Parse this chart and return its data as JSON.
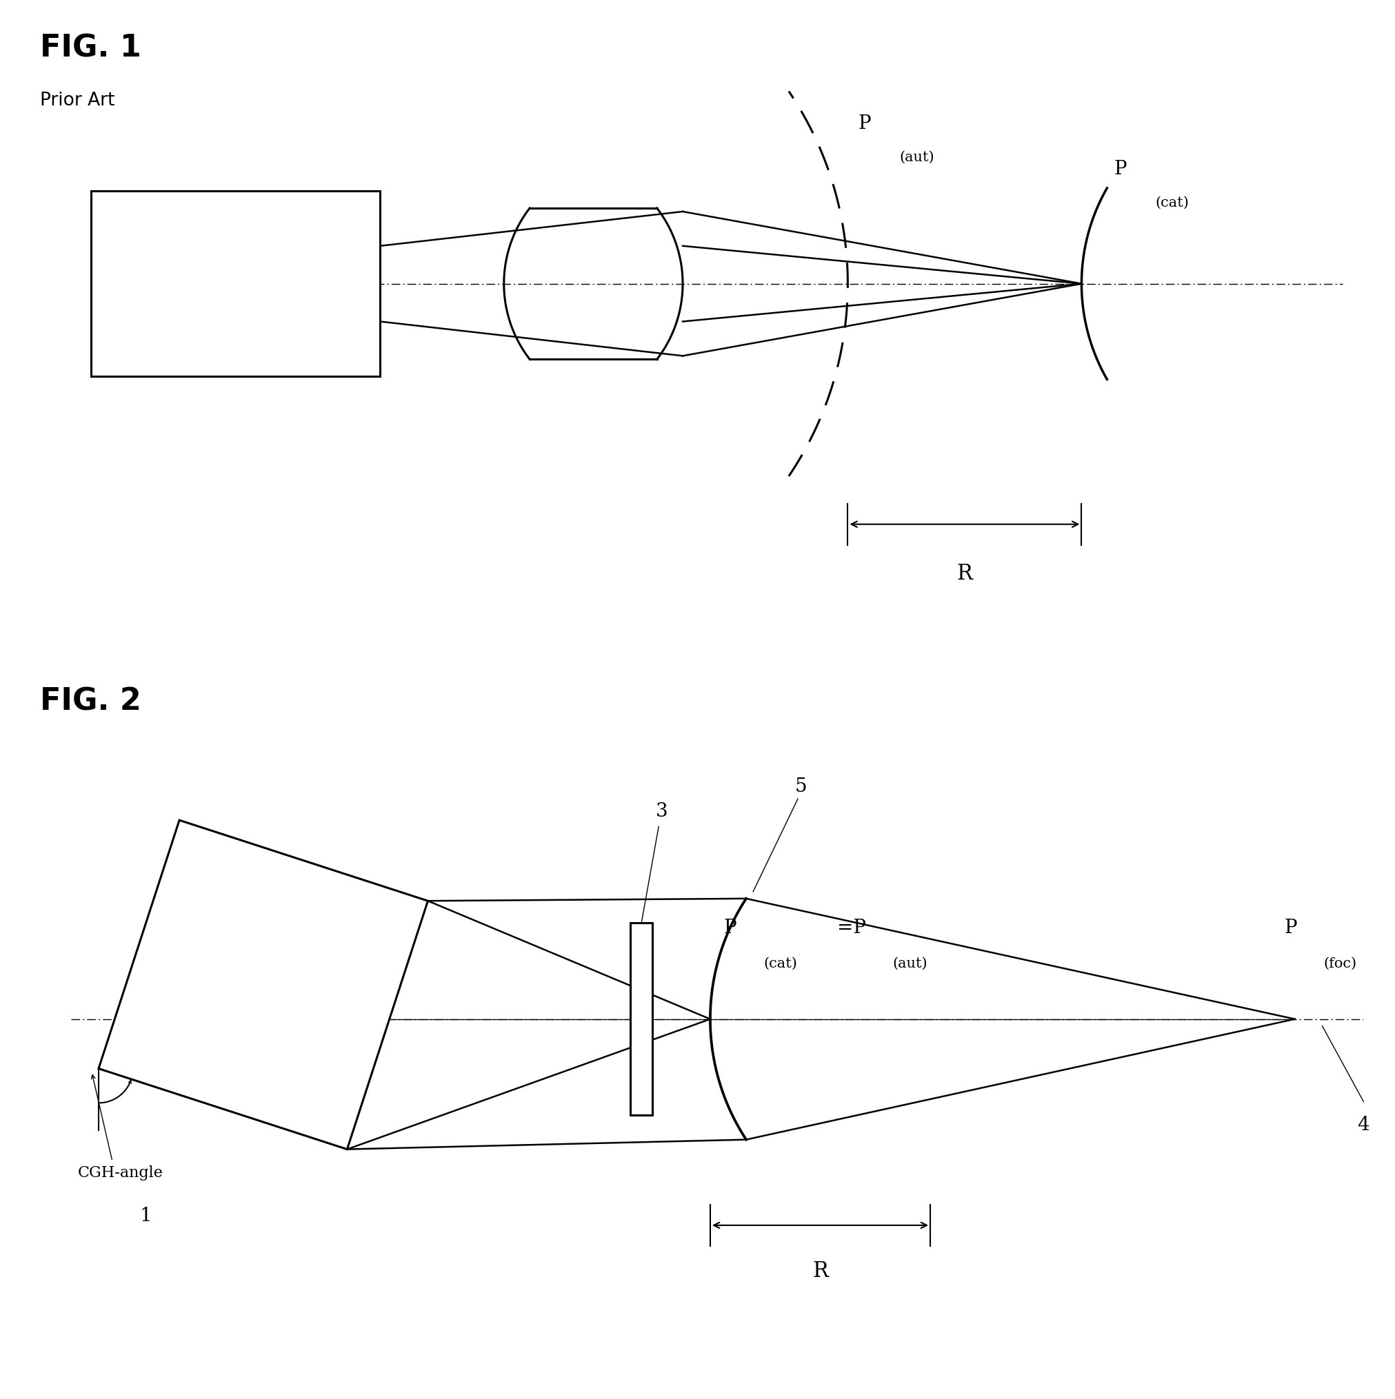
{
  "fig_width": 20.24,
  "fig_height": 20.31,
  "bg_color": "#ffffff",
  "line_color": "#000000",
  "fig1_title": "FIG. 1",
  "fig1_subtitle": "Prior Art",
  "fig2_title": "FIG. 2",
  "title_fontsize": 32,
  "subtitle_fontsize": 19,
  "label_fontsize": 20,
  "sub_fontsize": 15
}
